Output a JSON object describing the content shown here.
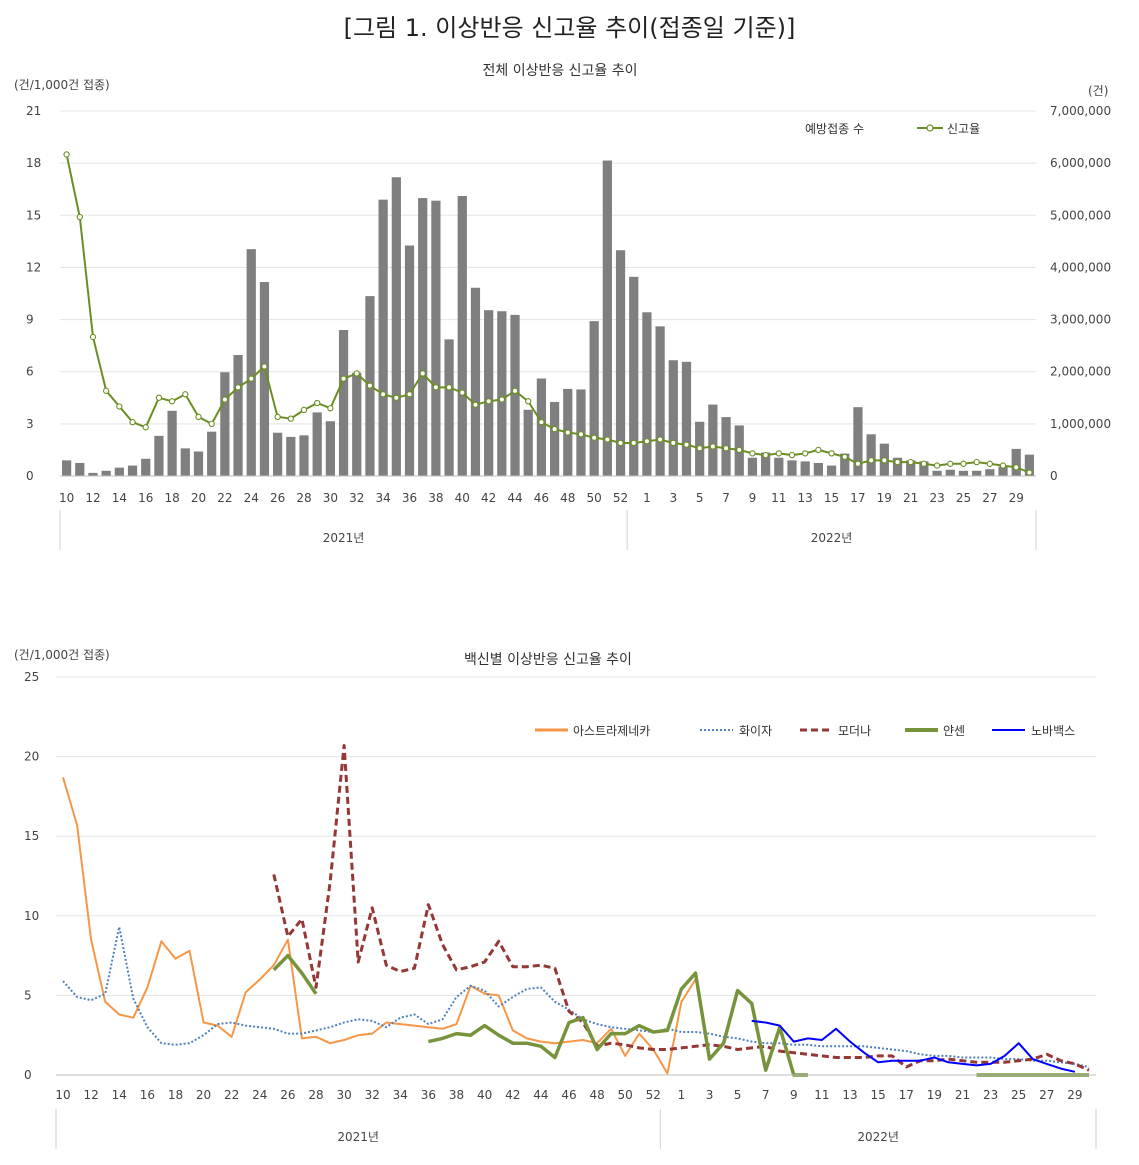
{
  "figure_title": "[그림 1. 이상반응 신고율 추이(접종일 기준)]",
  "chart_data": [
    {
      "type": "bar+line",
      "title": "전체 이상반응 신고율 추이",
      "left_unit": "(건/1,000건 접종)",
      "right_unit": "(건)",
      "left_ylim": [
        0,
        21
      ],
      "left_ticks": [
        "0",
        "3",
        "6",
        "9",
        "12",
        "15",
        "18",
        "21"
      ],
      "right_ylim": [
        0,
        7000000
      ],
      "right_ticks": [
        "0",
        "1,000,000",
        "2,000,000",
        "3,000,000",
        "4,000,000",
        "5,000,000",
        "6,000,000",
        "7,000,000"
      ],
      "year_groups": [
        {
          "label": "2021년",
          "start_week": 10,
          "end_week": 52
        },
        {
          "label": "2022년",
          "start_week": 1,
          "end_week": 30
        }
      ],
      "x_tick_labels": [
        "10",
        "12",
        "14",
        "16",
        "18",
        "20",
        "22",
        "24",
        "26",
        "28",
        "30",
        "32",
        "34",
        "36",
        "38",
        "40",
        "42",
        "44",
        "46",
        "48",
        "50",
        "52",
        "1",
        "3",
        "5",
        "7",
        "9",
        "11",
        "13",
        "15",
        "17",
        "19",
        "21",
        "23",
        "25",
        "27",
        "29"
      ],
      "legend": [
        "예방접종 수",
        "신고율"
      ],
      "series": [
        {
          "name": "예방접종 수",
          "kind": "bar",
          "color": "#7f7f7f",
          "values": [
            300000,
            250000,
            60000,
            100000,
            160000,
            200000,
            330000,
            770000,
            1250000,
            530000,
            470000,
            850000,
            1990000,
            2320000,
            4350000,
            3720000,
            830000,
            750000,
            780000,
            1220000,
            1050000,
            2800000,
            1980000,
            3450000,
            5300000,
            5730000,
            4420000,
            5330000,
            5280000,
            2620000,
            5370000,
            3610000,
            3180000,
            3160000,
            3090000,
            1270000,
            1870000,
            1420000,
            1670000,
            1660000,
            2970000,
            6050000,
            4330000,
            3820000,
            3140000,
            2870000,
            2220000,
            2190000,
            1040000,
            1370000,
            1130000,
            970000,
            350000,
            450000,
            350000,
            300000,
            280000,
            250000,
            200000,
            430000,
            1320000,
            800000,
            620000,
            350000,
            300000,
            280000,
            100000,
            120000,
            100000,
            100000,
            130000,
            180000,
            520000,
            410000
          ]
        },
        {
          "name": "신고율",
          "kind": "line",
          "color": "#6b8e23",
          "values": [
            18.5,
            14.9,
            8.0,
            4.9,
            4.0,
            3.1,
            2.8,
            4.5,
            4.3,
            4.7,
            3.4,
            3.0,
            4.4,
            5.1,
            5.6,
            6.3,
            3.4,
            3.3,
            3.8,
            4.2,
            3.9,
            5.6,
            5.9,
            5.2,
            4.7,
            4.5,
            4.7,
            5.9,
            5.1,
            5.1,
            4.8,
            4.1,
            4.3,
            4.4,
            4.9,
            4.3,
            3.1,
            2.7,
            2.5,
            2.4,
            2.2,
            2.1,
            1.9,
            1.9,
            2.0,
            2.1,
            1.9,
            1.8,
            1.6,
            1.7,
            1.6,
            1.5,
            1.3,
            1.2,
            1.3,
            1.2,
            1.3,
            1.5,
            1.3,
            1.1,
            0.7,
            0.9,
            0.9,
            0.8,
            0.8,
            0.7,
            0.6,
            0.7,
            0.7,
            0.8,
            0.7,
            0.6,
            0.5,
            0.2
          ]
        }
      ]
    },
    {
      "type": "line",
      "title": "백신별 이상반응 신고율 추이",
      "left_unit": "(건/1,000건 접종)",
      "ylim": [
        0,
        25
      ],
      "y_ticks": [
        "0",
        "5",
        "10",
        "15",
        "20",
        "25"
      ],
      "year_groups": [
        {
          "label": "2021년",
          "start_week": 10,
          "end_week": 52
        },
        {
          "label": "2022년",
          "start_week": 1,
          "end_week": 30
        }
      ],
      "x_tick_labels": [
        "10",
        "12",
        "14",
        "16",
        "18",
        "20",
        "22",
        "24",
        "26",
        "28",
        "30",
        "32",
        "34",
        "36",
        "38",
        "40",
        "42",
        "44",
        "46",
        "48",
        "50",
        "52",
        "1",
        "3",
        "5",
        "7",
        "9",
        "11",
        "13",
        "15",
        "17",
        "19",
        "21",
        "23",
        "25",
        "27",
        "29"
      ],
      "series": [
        {
          "name": "아스트라제네카",
          "color": "#f79646",
          "dash": "solid",
          "start_index": 0,
          "values": [
            18.7,
            15.7,
            8.5,
            4.6,
            3.8,
            3.6,
            5.5,
            8.4,
            7.3,
            7.8,
            3.3,
            3.1,
            2.4,
            5.2,
            6.0,
            6.9,
            8.5,
            2.3,
            2.4,
            2.0,
            2.2,
            2.5,
            2.6,
            3.3,
            3.2,
            3.1,
            3.0,
            2.9,
            3.2,
            5.6,
            5.1,
            5.0,
            2.8,
            2.3,
            2.1,
            2.0,
            2.1,
            2.2,
            2.0,
            2.9,
            1.2,
            2.6,
            1.6,
            0.1,
            4.6,
            6.0
          ]
        },
        {
          "name": "화이자",
          "color": "#4f81bd",
          "dash": "2,2",
          "start_index": 0,
          "values": [
            5.9,
            4.9,
            4.7,
            5.1,
            9.3,
            4.8,
            3.0,
            2.0,
            1.9,
            2.0,
            2.5,
            3.2,
            3.3,
            3.1,
            3.0,
            2.9,
            2.6,
            2.6,
            2.8,
            3.0,
            3.3,
            3.5,
            3.4,
            3.0,
            3.6,
            3.8,
            3.2,
            3.5,
            4.9,
            5.6,
            5.3,
            4.3,
            4.9,
            5.4,
            5.5,
            4.6,
            4.1,
            3.5,
            3.2,
            3.0,
            2.9,
            2.8,
            2.7,
            2.9,
            2.7,
            2.7,
            2.6,
            2.4,
            2.3,
            2.1,
            2.0,
            2.0,
            1.9,
            1.9,
            1.8,
            1.8,
            1.8,
            1.8,
            1.7,
            1.6,
            1.5,
            1.3,
            1.2,
            1.2,
            1.1,
            1.1,
            1.1,
            1.0,
            1.0,
            0.9,
            0.9,
            0.8,
            0.7,
            0.5
          ]
        },
        {
          "name": "모더나",
          "color": "#953735",
          "dash": "7,4",
          "start_index": 15,
          "values": [
            12.6,
            8.7,
            9.8,
            5.5,
            12.1,
            20.7,
            7.1,
            10.5,
            6.9,
            6.5,
            6.7,
            10.7,
            8.2,
            6.6,
            6.8,
            7.1,
            8.4,
            6.8,
            6.8,
            6.9,
            6.7,
            4.0,
            3.3,
            1.8,
            2.0,
            1.9,
            1.7,
            1.6,
            1.6,
            1.7,
            1.8,
            1.9,
            1.8,
            1.6,
            1.7,
            1.8,
            1.5,
            1.4,
            1.3,
            1.2,
            1.1,
            1.1,
            1.1,
            1.2,
            1.2,
            0.5,
            0.9,
            0.9,
            1.0,
            0.9,
            0.8,
            0.8,
            0.8,
            0.9,
            1.0,
            1.3,
            0.9,
            0.7,
            0.3
          ]
        },
        {
          "name": "얀센",
          "color": "#77933c",
          "dash": "solid",
          "start_index": 15,
          "values": [
            6.6,
            7.5,
            6.4,
            5.1
          ]
        },
        {
          "name": "얀센",
          "color": "#77933c",
          "dash": "solid",
          "start_index": 26,
          "values": [
            2.1,
            2.3,
            2.6,
            2.5,
            3.1,
            2.5,
            2.0,
            2.0,
            1.8,
            1.1,
            3.3,
            3.6,
            1.6,
            2.6,
            2.6,
            3.1,
            2.7,
            2.8,
            5.4,
            6.4,
            1.0,
            2.0,
            5.3,
            4.5,
            0.3,
            3.0,
            0.0,
            0.0
          ]
        },
        {
          "name": "얀센",
          "color": "#77933c",
          "dash": "solid",
          "start_index": 65,
          "values": [
            0.0,
            0.0,
            0.0,
            0.0,
            0.0,
            0.0,
            0.0,
            0.0,
            0.0
          ]
        },
        {
          "name": "노바백스",
          "color": "#0000ff",
          "dash": "solid",
          "start_index": 49,
          "values": [
            3.4,
            3.3,
            3.1,
            2.1,
            2.3,
            2.2,
            2.9,
            2.1,
            1.4,
            0.8,
            0.9,
            0.9,
            0.9,
            1.1,
            0.8,
            0.7,
            0.6,
            0.7,
            1.2,
            2.0,
            1.0,
            0.7,
            0.4,
            0.2
          ]
        }
      ],
      "legend": [
        "아스트라제네카",
        "화이자",
        "모더나",
        "얀센",
        "노바백스"
      ]
    }
  ]
}
